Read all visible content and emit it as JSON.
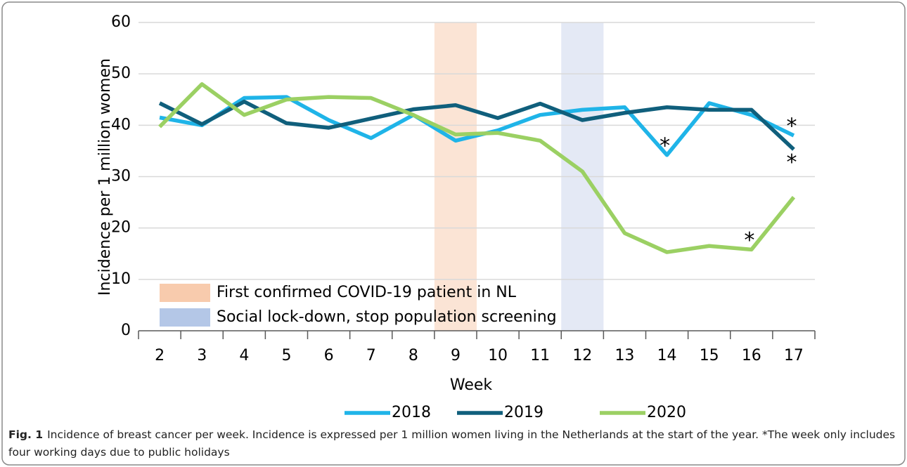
{
  "chart_data": {
    "type": "line",
    "x_label": "Week",
    "y_label": "Incidence per 1 million women",
    "categories": [
      "2",
      "3",
      "4",
      "5",
      "6",
      "7",
      "8",
      "9",
      "10",
      "11",
      "12",
      "13",
      "14",
      "15",
      "16",
      "17"
    ],
    "series": [
      {
        "name": "2018",
        "color": "#1fb4e8",
        "values": [
          41.5,
          40,
          45.3,
          45.5,
          41,
          37.5,
          42,
          37,
          39,
          42,
          43,
          43.5,
          34.2,
          44.3,
          42,
          38
        ]
      },
      {
        "name": "2019",
        "color": "#105f7c",
        "values": [
          44.3,
          40.2,
          44.6,
          40.4,
          39.5,
          41.3,
          43.1,
          43.9,
          41.4,
          44.2,
          41,
          42.4,
          43.5,
          43,
          43,
          35.3
        ]
      },
      {
        "name": "2020",
        "color": "#9bd063",
        "values": [
          39.7,
          48,
          42,
          45,
          45.5,
          45.3,
          42,
          38.2,
          38.5,
          37,
          31,
          19,
          15.3,
          16.5,
          15.8,
          26
        ]
      }
    ],
    "ylim": [
      0,
      60
    ],
    "yticks": [
      0,
      10,
      20,
      30,
      40,
      50,
      60
    ],
    "grid": true,
    "bands": [
      {
        "label": "First confirmed COVID-19 patient in NL",
        "category": "9",
        "color": "#fbe4d5",
        "legend_color": "#f8cbad"
      },
      {
        "label": "Social lock-down, stop population screening",
        "category": "12",
        "color": "#e4e9f5",
        "legend_color": "#b4c7e7"
      }
    ],
    "annotations": [
      {
        "text": "*",
        "series": "2018",
        "category": "14",
        "position": "above"
      },
      {
        "text": "*",
        "series": "2020",
        "category": "16",
        "position": "above"
      },
      {
        "text": "*",
        "series": "2018",
        "category": "17",
        "position": "above"
      },
      {
        "text": "*",
        "series": "2019",
        "category": "17",
        "position": "below"
      }
    ],
    "caption": {
      "label": "Fig. 1",
      "text": "Incidence of breast cancer per week. Incidence is expressed per 1 million women living in the Netherlands at the start of the year. *The week only includes four working days due to public holidays"
    }
  }
}
